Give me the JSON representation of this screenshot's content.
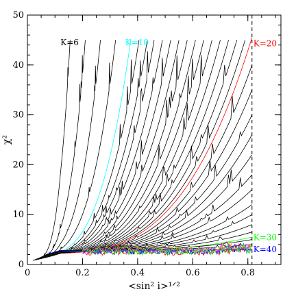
{
  "chart_data": {
    "type": "line",
    "xlabel": "<sin² i>¹ᐟ²",
    "ylabel": "χ²",
    "xlim": [
      0,
      0.92
    ],
    "ylim": [
      0,
      50
    ],
    "x_ticks": [
      0,
      0.2,
      0.4,
      0.6,
      0.8
    ],
    "x_tick_labels": [
      "0",
      "0.2",
      "0.4",
      "0.6",
      "0.8"
    ],
    "x_minor_step": 0.05,
    "y_ticks": [
      0,
      10,
      20,
      30,
      40,
      50
    ],
    "y_tick_labels": [
      "0",
      "10",
      "20",
      "30",
      "40",
      "50"
    ],
    "y_minor_step": 2,
    "vertical_line_x": 0.815,
    "default_color": "#000000",
    "floor_noise_colors": [
      "#ff0000",
      "#00cc00",
      "#0000ff",
      "#00bbbb",
      "#cc00cc",
      "#cccc00"
    ],
    "series": [
      {
        "k": 6,
        "x_end": 0.155,
        "y_end": 45,
        "color": "#000000",
        "label": "K=6"
      },
      {
        "k": 7,
        "x_end": 0.21,
        "y_end": 45,
        "color": "#000000"
      },
      {
        "k": 8,
        "x_end": 0.265,
        "y_end": 45,
        "color": "#000000"
      },
      {
        "k": 9,
        "x_end": 0.32,
        "y_end": 45,
        "color": "#000000"
      },
      {
        "k": 10,
        "x_end": 0.375,
        "y_end": 45,
        "color": "#00ffff",
        "label": "K=10"
      },
      {
        "k": 11,
        "x_end": 0.405,
        "y_end": 45,
        "color": "#000000"
      },
      {
        "k": 12,
        "x_end": 0.435,
        "y_end": 45,
        "color": "#000000"
      },
      {
        "k": 13,
        "x_end": 0.46,
        "y_end": 45,
        "color": "#000000"
      },
      {
        "k": 14,
        "x_end": 0.49,
        "y_end": 45,
        "color": "#000000"
      },
      {
        "k": 15,
        "x_end": 0.52,
        "y_end": 45,
        "color": "#000000"
      },
      {
        "k": 16,
        "x_end": 0.55,
        "y_end": 45,
        "color": "#000000"
      },
      {
        "k": 17,
        "x_end": 0.58,
        "y_end": 45,
        "color": "#000000"
      },
      {
        "k": 18,
        "x_end": 0.61,
        "y_end": 45,
        "color": "#000000"
      },
      {
        "k": 19,
        "x_end": 0.64,
        "y_end": 45,
        "color": "#000000"
      },
      {
        "k": 20,
        "x_end": 0.815,
        "y_end": 45.5,
        "color": "#ff0000",
        "label": "K=20"
      },
      {
        "k": 21,
        "x_end": 0.67,
        "y_end": 45,
        "color": "#000000"
      },
      {
        "k": 22,
        "x_end": 0.7,
        "y_end": 45,
        "color": "#000000"
      },
      {
        "k": 23,
        "x_end": 0.73,
        "y_end": 45,
        "color": "#000000"
      },
      {
        "k": 24,
        "x_end": 0.76,
        "y_end": 45,
        "color": "#000000"
      },
      {
        "k": 25,
        "x_end": 0.79,
        "y_end": 45,
        "color": "#000000"
      },
      {
        "k": 26,
        "x_end": 0.815,
        "y_end": 40,
        "color": "#000000"
      },
      {
        "k": 27,
        "x_end": 0.815,
        "y_end": 35,
        "color": "#000000"
      },
      {
        "k": 28,
        "x_end": 0.815,
        "y_end": 30,
        "color": "#000000"
      },
      {
        "k": 29,
        "x_end": 0.815,
        "y_end": 26,
        "color": "#000000"
      },
      {
        "k": 30,
        "x_end": 0.815,
        "y_end": 5.5,
        "color": "#00ff00",
        "label": "K=30"
      },
      {
        "k": 31,
        "x_end": 0.815,
        "y_end": 22,
        "color": "#000000"
      },
      {
        "k": 32,
        "x_end": 0.815,
        "y_end": 18,
        "color": "#000000"
      },
      {
        "k": 33,
        "x_end": 0.815,
        "y_end": 15,
        "color": "#000000"
      },
      {
        "k": 34,
        "x_end": 0.815,
        "y_end": 12,
        "color": "#000000"
      },
      {
        "k": 35,
        "x_end": 0.815,
        "y_end": 10,
        "color": "#000000"
      },
      {
        "k": 36,
        "x_end": 0.815,
        "y_end": 8,
        "color": "#000000"
      },
      {
        "k": 37,
        "x_end": 0.815,
        "y_end": 6.5,
        "color": "#000000"
      },
      {
        "k": 38,
        "x_end": 0.815,
        "y_end": 5,
        "color": "#000000"
      },
      {
        "k": 39,
        "x_end": 0.815,
        "y_end": 4,
        "color": "#000000"
      },
      {
        "k": 40,
        "x_end": 0.815,
        "y_end": 3.0,
        "color": "#0000ff",
        "label": "K=40"
      }
    ],
    "labels": [
      {
        "text": "K=6",
        "x": 0.12,
        "y": 44.5,
        "color": "#000000"
      },
      {
        "text": "K=10",
        "x": 0.355,
        "y": 44.5,
        "color": "#00ffff"
      },
      {
        "text": "K=20",
        "x": 0.82,
        "y": 44.3,
        "color": "#ff0000"
      },
      {
        "text": "K=30",
        "x": 0.82,
        "y": 5.4,
        "color": "#00ff00"
      },
      {
        "text": "K=40",
        "x": 0.82,
        "y": 3.0,
        "color": "#0000ff"
      }
    ]
  }
}
